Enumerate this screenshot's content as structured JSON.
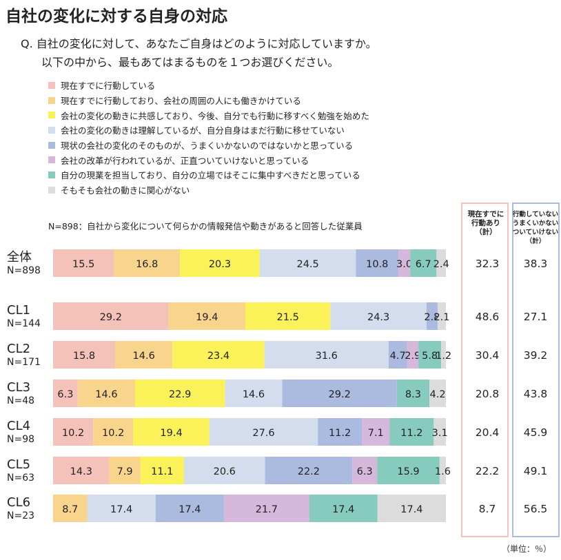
{
  "title": "自社の変化に対する自身の対応",
  "question": {
    "line1": "Q. 自社の変化に対して、あなたご自身はどのように対応していますか。",
    "line2": "以下の中から、最もあてはまるものを１つお選びください。"
  },
  "note": "N=898：自社から変化について何らかの情報発信や動きがあると回答した従業員",
  "unit": "（単位：％）",
  "colors": [
    "#f4c2b8",
    "#f9d48c",
    "#fbf158",
    "#d3ddee",
    "#aabbdf",
    "#d5b8dc",
    "#86cbbd",
    "#dcdcdc"
  ],
  "chart_data": {
    "type": "bar",
    "orientation": "horizontal-stacked-100",
    "series": [
      {
        "name": "現在すでに行動している"
      },
      {
        "name": "現在すでに行動しており、会社の周囲の人にも働きかけている"
      },
      {
        "name": "会社の変化の動きに共感しており、今後、自分でも行動に移すべく勉強を始めた"
      },
      {
        "name": "会社の変化の動きは理解しているが、自分自身はまだ行動に移せていない"
      },
      {
        "name": "現状の会社の変化のそのものが、うまくいかないのではないかと思っている"
      },
      {
        "name": "会社の改革が行われているが、正直ついていけないと思っている"
      },
      {
        "name": "自分の現業を担当しており、自分の立場ではそこに集中すべきだと思っている"
      },
      {
        "name": "そもそも会社の動きに関心がない"
      }
    ],
    "rows": [
      {
        "label": "全体",
        "n": "N=898",
        "values": [
          15.5,
          16.8,
          20.3,
          24.5,
          10.8,
          3.0,
          6.7,
          2.4
        ],
        "labels": [
          "15.5",
          "16.8",
          "20.3",
          "24.5",
          "10.8",
          "3.0",
          "6.7",
          "2.4"
        ],
        "acting": "32.3",
        "notacting": "38.3"
      },
      {
        "label": "CL1",
        "n": "N=144",
        "values": [
          29.2,
          19.4,
          21.5,
          24.3,
          2.8,
          0,
          0,
          2.1
        ],
        "labels": [
          "29.2",
          "19.4",
          "21.5",
          "24.3",
          "2.8",
          "",
          "",
          "2.1"
        ],
        "acting": "48.6",
        "notacting": "27.1"
      },
      {
        "label": "CL2",
        "n": "N=171",
        "values": [
          15.8,
          14.6,
          23.4,
          31.6,
          4.7,
          2.9,
          5.8,
          1.2
        ],
        "labels": [
          "15.8",
          "14.6",
          "23.4",
          "31.6",
          "4.7",
          "2.9",
          "5.8",
          "1.2"
        ],
        "acting": "30.4",
        "notacting": "39.2"
      },
      {
        "label": "CL3",
        "n": "N=48",
        "values": [
          6.3,
          14.6,
          22.9,
          14.6,
          29.2,
          0,
          8.3,
          4.2
        ],
        "labels": [
          "6.3",
          "14.6",
          "22.9",
          "14.6",
          "29.2",
          "",
          "8.3",
          "4.2"
        ],
        "acting": "20.8",
        "notacting": "43.8"
      },
      {
        "label": "CL4",
        "n": "N=98",
        "values": [
          10.2,
          10.2,
          19.4,
          27.6,
          11.2,
          7.1,
          11.2,
          3.1
        ],
        "labels": [
          "10.2",
          "10.2",
          "19.4",
          "27.6",
          "11.2",
          "7.1",
          "11.2",
          "3.1"
        ],
        "acting": "20.4",
        "notacting": "45.9"
      },
      {
        "label": "CL5",
        "n": "N=63",
        "values": [
          14.3,
          7.9,
          11.1,
          20.6,
          22.2,
          6.3,
          15.9,
          1.6
        ],
        "labels": [
          "14.3",
          "7.9",
          "11.1",
          "20.6",
          "22.2",
          "6.3",
          "15.9",
          "1.6"
        ],
        "acting": "22.2",
        "notacting": "49.1"
      },
      {
        "label": "CL6",
        "n": "N=23",
        "values": [
          0,
          8.7,
          0,
          17.4,
          17.4,
          21.7,
          17.4,
          17.4
        ],
        "labels": [
          "",
          "8.7",
          "",
          "17.4",
          "17.4",
          "21.7",
          "17.4",
          "17.4"
        ],
        "acting": "8.7",
        "notacting": "56.5"
      }
    ],
    "summary_columns": [
      {
        "header": [
          "現在すでに",
          "行動あり",
          "（計）"
        ],
        "border": "#f4c2b8"
      },
      {
        "header": [
          "行動していない",
          "うまくいかない",
          "ついていけない",
          "（計）"
        ],
        "border": "#aabbdf"
      }
    ]
  }
}
